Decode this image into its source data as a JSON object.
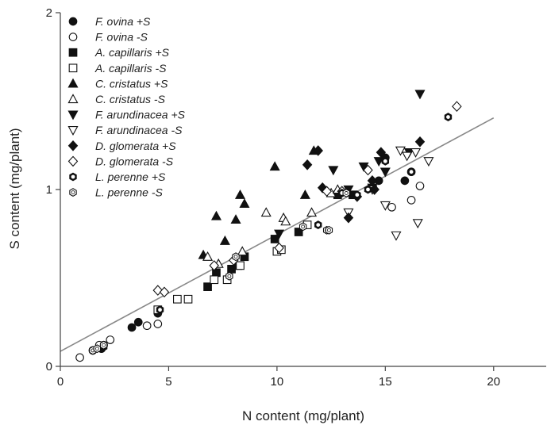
{
  "chart_data": {
    "type": "scatter",
    "title": "",
    "xlabel": "N content (mg/plant)",
    "ylabel": "S content (mg/plant)",
    "xlim": [
      0,
      22.5
    ],
    "ylim": [
      0,
      2
    ],
    "xticks": [
      0,
      5,
      10,
      15,
      20
    ],
    "yticks": [
      0,
      1,
      2
    ],
    "grid": false,
    "legend_position": "top-left",
    "line_color": "#888888",
    "marker_color": "#111111",
    "open_marker_fill": "#ffffff",
    "trendline": {
      "x": [
        0,
        20
      ],
      "y": [
        0.085,
        1.405
      ]
    },
    "series": [
      {
        "name": "F. ovina +S",
        "marker": "circle",
        "filled": true,
        "points": [
          [
            3.3,
            0.22
          ],
          [
            3.6,
            0.25
          ],
          [
            4.5,
            0.3
          ],
          [
            1.9,
            0.1
          ],
          [
            2.0,
            0.12
          ],
          [
            14.7,
            1.05
          ],
          [
            15.0,
            1.18
          ],
          [
            15.9,
            1.05
          ],
          [
            16.2,
            1.1
          ]
        ]
      },
      {
        "name": "F. ovina -S",
        "marker": "circle",
        "filled": false,
        "points": [
          [
            0.9,
            0.05
          ],
          [
            1.5,
            0.09
          ],
          [
            1.8,
            0.12
          ],
          [
            2.3,
            0.15
          ],
          [
            4.0,
            0.23
          ],
          [
            4.5,
            0.24
          ],
          [
            15.3,
            0.9
          ],
          [
            16.2,
            0.94
          ],
          [
            16.6,
            1.02
          ]
        ]
      },
      {
        "name": "A. capillaris +S",
        "marker": "square",
        "filled": true,
        "points": [
          [
            6.8,
            0.45
          ],
          [
            7.2,
            0.53
          ],
          [
            7.9,
            0.55
          ],
          [
            8.2,
            0.57
          ],
          [
            8.5,
            0.62
          ],
          [
            9.9,
            0.72
          ],
          [
            11.0,
            0.76
          ],
          [
            12.8,
            0.97
          ],
          [
            13.5,
            0.97
          ]
        ]
      },
      {
        "name": "A. capillaris -S",
        "marker": "square",
        "filled": false,
        "points": [
          [
            4.5,
            0.32
          ],
          [
            5.4,
            0.38
          ],
          [
            5.9,
            0.38
          ],
          [
            7.1,
            0.49
          ],
          [
            7.7,
            0.49
          ],
          [
            8.3,
            0.57
          ],
          [
            10.0,
            0.65
          ],
          [
            10.2,
            0.66
          ],
          [
            11.4,
            0.8
          ]
        ]
      },
      {
        "name": "C. cristatus +S",
        "marker": "triangle-up",
        "filled": true,
        "points": [
          [
            6.6,
            0.63
          ],
          [
            7.2,
            0.85
          ],
          [
            7.6,
            0.71
          ],
          [
            8.1,
            0.83
          ],
          [
            8.3,
            0.97
          ],
          [
            8.5,
            0.92
          ],
          [
            9.9,
            1.13
          ],
          [
            11.3,
            0.97
          ],
          [
            11.7,
            1.22
          ]
        ]
      },
      {
        "name": "C. cristatus -S",
        "marker": "triangle-up",
        "filled": false,
        "points": [
          [
            6.8,
            0.62
          ],
          [
            7.3,
            0.58
          ],
          [
            8.4,
            0.65
          ],
          [
            9.5,
            0.87
          ],
          [
            10.3,
            0.84
          ],
          [
            10.4,
            0.82
          ],
          [
            11.6,
            0.87
          ],
          [
            12.5,
            0.98
          ],
          [
            12.8,
            1.0
          ]
        ]
      },
      {
        "name": "F. arundinacea +S",
        "marker": "triangle-down",
        "filled": true,
        "points": [
          [
            10.1,
            0.75
          ],
          [
            12.6,
            1.11
          ],
          [
            13.3,
            1.0
          ],
          [
            14.0,
            1.13
          ],
          [
            14.4,
            1.01
          ],
          [
            14.7,
            1.16
          ],
          [
            15.0,
            1.1
          ],
          [
            16.1,
            1.21
          ],
          [
            16.6,
            1.54
          ]
        ]
      },
      {
        "name": "F. arundinacea -S",
        "marker": "triangle-down",
        "filled": false,
        "points": [
          [
            13.3,
            0.87
          ],
          [
            14.4,
            1.0
          ],
          [
            15.0,
            0.91
          ],
          [
            15.5,
            0.74
          ],
          [
            15.7,
            1.22
          ],
          [
            16.0,
            1.19
          ],
          [
            16.4,
            1.21
          ],
          [
            16.5,
            0.81
          ],
          [
            17.0,
            1.16
          ]
        ]
      },
      {
        "name": "D. glomerata +S",
        "marker": "diamond",
        "filled": true,
        "points": [
          [
            11.4,
            1.14
          ],
          [
            11.9,
            1.22
          ],
          [
            12.1,
            1.01
          ],
          [
            13.3,
            0.84
          ],
          [
            13.7,
            0.96
          ],
          [
            14.4,
            1.05
          ],
          [
            14.5,
            1.0
          ],
          [
            14.8,
            1.21
          ],
          [
            16.6,
            1.27
          ]
        ]
      },
      {
        "name": "D. glomerata -S",
        "marker": "diamond",
        "filled": false,
        "points": [
          [
            4.5,
            0.43
          ],
          [
            4.8,
            0.42
          ],
          [
            7.1,
            0.57
          ],
          [
            8.0,
            0.6
          ],
          [
            10.1,
            0.67
          ],
          [
            12.3,
            0.99
          ],
          [
            13.0,
            0.99
          ],
          [
            14.2,
            1.11
          ],
          [
            18.3,
            1.47
          ]
        ]
      },
      {
        "name": "L. perenne +S",
        "marker": "hexagon",
        "filled": true,
        "points": [
          [
            2.0,
            0.11
          ],
          [
            4.6,
            0.32
          ],
          [
            11.9,
            0.8
          ],
          [
            13.0,
            0.98
          ],
          [
            13.7,
            0.97
          ],
          [
            14.2,
            1.0
          ],
          [
            15.0,
            1.16
          ],
          [
            16.2,
            1.1
          ],
          [
            17.9,
            1.41
          ]
        ]
      },
      {
        "name": "L. perenne -S",
        "marker": "hexagon",
        "filled": false,
        "points": [
          [
            1.5,
            0.09
          ],
          [
            1.7,
            0.1
          ],
          [
            2.0,
            0.12
          ],
          [
            7.8,
            0.51
          ],
          [
            8.1,
            0.62
          ],
          [
            11.2,
            0.79
          ],
          [
            12.3,
            0.77
          ],
          [
            12.4,
            0.77
          ],
          [
            13.2,
            0.98
          ]
        ]
      }
    ]
  }
}
